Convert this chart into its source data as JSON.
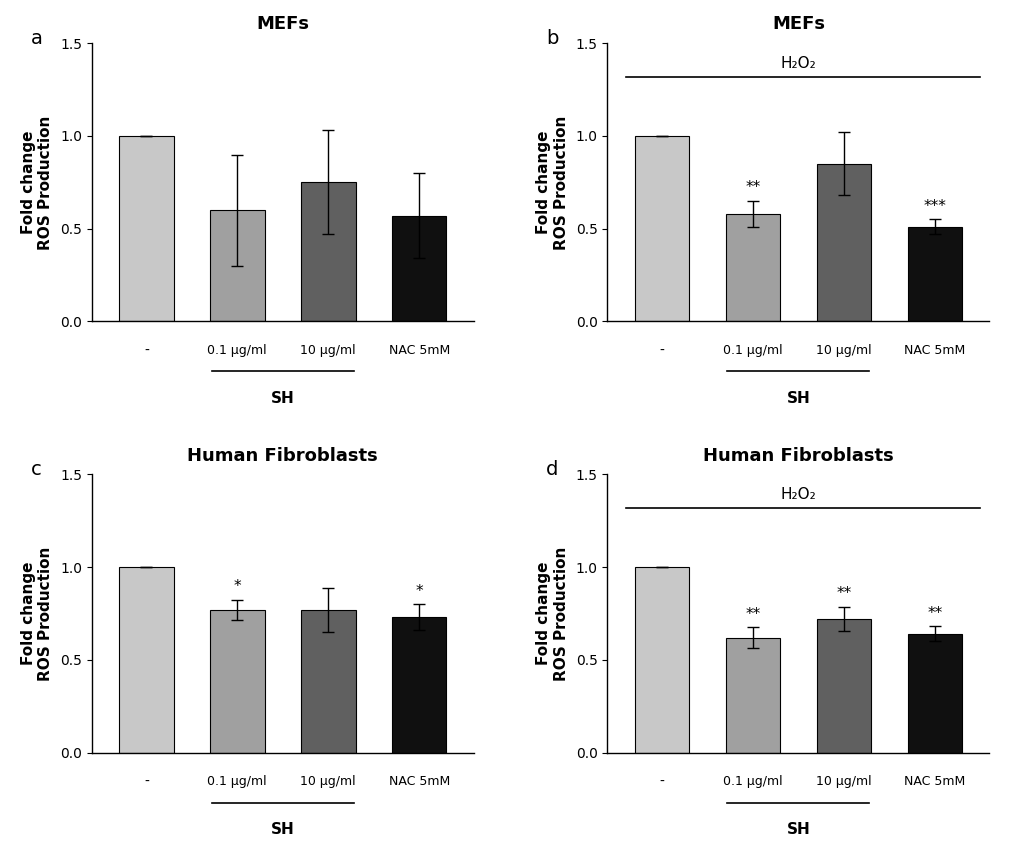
{
  "panels": [
    {
      "label": "a",
      "title": "MEFs",
      "has_h2o2": false,
      "values": [
        1.0,
        0.6,
        0.75,
        0.57
      ],
      "errors": [
        0.0,
        0.3,
        0.28,
        0.23
      ],
      "significance": [
        "",
        "",
        "",
        ""
      ],
      "colors": [
        "#c8c8c8",
        "#a0a0a0",
        "#606060",
        "#101010"
      ]
    },
    {
      "label": "b",
      "title": "MEFs",
      "has_h2o2": true,
      "values": [
        1.0,
        0.58,
        0.85,
        0.51
      ],
      "errors": [
        0.0,
        0.07,
        0.17,
        0.04
      ],
      "significance": [
        "",
        "**",
        "",
        "***"
      ],
      "colors": [
        "#c8c8c8",
        "#a0a0a0",
        "#606060",
        "#101010"
      ]
    },
    {
      "label": "c",
      "title": "Human Fibroblasts",
      "has_h2o2": false,
      "values": [
        1.0,
        0.77,
        0.77,
        0.73
      ],
      "errors": [
        0.0,
        0.055,
        0.12,
        0.07
      ],
      "significance": [
        "",
        "*",
        "",
        "*"
      ],
      "colors": [
        "#c8c8c8",
        "#a0a0a0",
        "#606060",
        "#101010"
      ]
    },
    {
      "label": "d",
      "title": "Human Fibroblasts",
      "has_h2o2": true,
      "values": [
        1.0,
        0.62,
        0.72,
        0.64
      ],
      "errors": [
        0.0,
        0.055,
        0.065,
        0.04
      ],
      "significance": [
        "",
        "**",
        "**",
        "**"
      ],
      "colors": [
        "#c8c8c8",
        "#a0a0a0",
        "#606060",
        "#101010"
      ]
    }
  ],
  "x_labels": [
    "-",
    "0.1 μg/ml",
    "10 μg/ml",
    "NAC 5mM"
  ],
  "sh_label": "SH",
  "ylabel": "Fold change\nROS Production",
  "ylim": [
    0.0,
    1.5
  ],
  "yticks": [
    0.0,
    0.5,
    1.0,
    1.5
  ],
  "h2o2_label": "H₂O₂",
  "background_color": "#ffffff",
  "bar_width": 0.6
}
